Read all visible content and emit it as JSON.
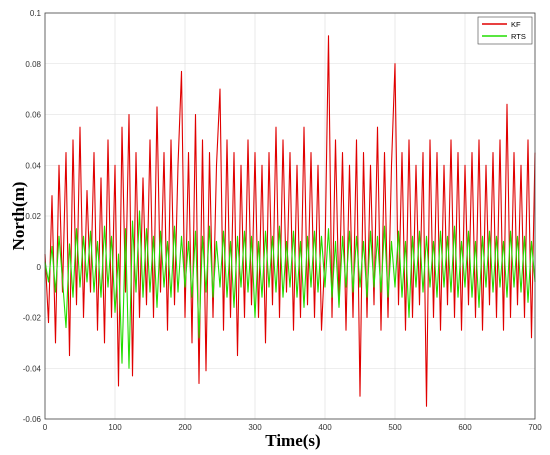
{
  "chart_data": {
    "type": "line",
    "xlabel": "Time(s)",
    "ylabel": "North(m)",
    "xlim": [
      0,
      700
    ],
    "ylim": [
      -0.06,
      0.1
    ],
    "x_ticks": [
      "0",
      "100",
      "200",
      "300",
      "400",
      "500",
      "600",
      "700"
    ],
    "y_ticks": [
      "-0.06",
      "-0.04",
      "-0.02",
      "0",
      "0.02",
      "0.04",
      "0.06",
      "0.08",
      "0.1"
    ],
    "grid": true,
    "legend_position": "top-right",
    "series": [
      {
        "name": "KF",
        "color": "#e00000",
        "x": [
          0,
          5,
          10,
          15,
          20,
          25,
          30,
          35,
          40,
          45,
          50,
          55,
          60,
          65,
          70,
          75,
          80,
          85,
          90,
          95,
          100,
          105,
          110,
          115,
          120,
          125,
          130,
          135,
          140,
          145,
          150,
          155,
          160,
          165,
          170,
          175,
          180,
          185,
          190,
          195,
          200,
          205,
          210,
          215,
          220,
          225,
          230,
          235,
          240,
          245,
          250,
          255,
          260,
          265,
          270,
          275,
          280,
          285,
          290,
          295,
          300,
          305,
          310,
          315,
          320,
          325,
          330,
          335,
          340,
          345,
          350,
          355,
          360,
          365,
          370,
          375,
          380,
          385,
          390,
          395,
          400,
          405,
          410,
          415,
          420,
          425,
          430,
          435,
          440,
          445,
          450,
          455,
          460,
          465,
          470,
          475,
          480,
          485,
          490,
          495,
          500,
          505,
          510,
          515,
          520,
          525,
          530,
          535,
          540,
          545,
          550,
          555,
          560,
          565,
          570,
          575,
          580,
          585,
          590,
          595,
          600,
          605,
          610,
          615,
          620,
          625,
          630,
          635,
          640,
          645,
          650,
          655,
          660,
          665,
          670,
          675,
          680,
          685,
          690,
          695,
          700
        ],
        "y": [
          0.005,
          -0.022,
          0.028,
          -0.03,
          0.04,
          -0.01,
          0.045,
          -0.035,
          0.05,
          -0.015,
          0.055,
          -0.02,
          0.03,
          -0.01,
          0.045,
          -0.025,
          0.035,
          -0.03,
          0.05,
          -0.02,
          0.04,
          -0.047,
          0.055,
          -0.01,
          0.06,
          -0.043,
          0.045,
          -0.02,
          0.035,
          -0.015,
          0.05,
          -0.02,
          0.063,
          -0.01,
          0.045,
          -0.025,
          0.05,
          -0.015,
          0.04,
          0.077,
          -0.02,
          0.045,
          -0.03,
          0.06,
          -0.046,
          0.05,
          -0.041,
          0.045,
          -0.02,
          0.04,
          0.07,
          -0.025,
          0.05,
          -0.02,
          0.045,
          -0.035,
          0.04,
          -0.02,
          0.05,
          -0.015,
          0.045,
          -0.02,
          0.04,
          -0.03,
          0.045,
          -0.015,
          0.055,
          -0.02,
          0.05,
          -0.01,
          0.045,
          -0.025,
          0.04,
          -0.02,
          0.055,
          -0.015,
          0.045,
          -0.02,
          0.04,
          -0.025,
          0.005,
          0.091,
          -0.02,
          0.05,
          -0.015,
          0.045,
          -0.025,
          0.04,
          -0.02,
          0.05,
          -0.051,
          0.045,
          -0.02,
          0.04,
          -0.015,
          0.055,
          -0.025,
          0.045,
          -0.02,
          0.04,
          0.08,
          -0.015,
          0.045,
          -0.025,
          0.05,
          -0.02,
          0.04,
          -0.015,
          0.045,
          -0.055,
          0.05,
          -0.02,
          0.045,
          -0.025,
          0.04,
          -0.015,
          0.05,
          -0.02,
          0.045,
          -0.025,
          0.04,
          -0.015,
          0.045,
          -0.02,
          0.05,
          -0.025,
          0.04,
          -0.015,
          0.045,
          -0.02,
          0.05,
          -0.025,
          0.064,
          -0.02,
          0.045,
          -0.015,
          0.04,
          -0.02,
          0.05,
          -0.028,
          0.045
        ]
      },
      {
        "name": "RTS",
        "color": "#22dd00",
        "x": [
          0,
          5,
          10,
          15,
          20,
          25,
          30,
          35,
          40,
          45,
          50,
          55,
          60,
          65,
          70,
          75,
          80,
          85,
          90,
          95,
          100,
          105,
          110,
          115,
          120,
          125,
          130,
          135,
          140,
          145,
          150,
          155,
          160,
          165,
          170,
          175,
          180,
          185,
          190,
          195,
          200,
          205,
          210,
          215,
          220,
          225,
          230,
          235,
          240,
          245,
          250,
          255,
          260,
          265,
          270,
          275,
          280,
          285,
          290,
          295,
          300,
          305,
          310,
          315,
          320,
          325,
          330,
          335,
          340,
          345,
          350,
          355,
          360,
          365,
          370,
          375,
          380,
          385,
          390,
          395,
          400,
          405,
          410,
          415,
          420,
          425,
          430,
          435,
          440,
          445,
          450,
          455,
          460,
          465,
          470,
          475,
          480,
          485,
          490,
          495,
          500,
          505,
          510,
          515,
          520,
          525,
          530,
          535,
          540,
          545,
          550,
          555,
          560,
          565,
          570,
          575,
          580,
          585,
          590,
          595,
          600,
          605,
          610,
          615,
          620,
          625,
          630,
          635,
          640,
          645,
          650,
          655,
          660,
          665,
          670,
          675,
          680,
          685,
          690,
          695,
          700
        ],
        "y": [
          0.002,
          -0.006,
          0.008,
          -0.01,
          0.012,
          -0.005,
          -0.024,
          0.009,
          -0.012,
          0.015,
          -0.008,
          0.012,
          -0.006,
          0.014,
          -0.01,
          0.01,
          -0.012,
          0.016,
          -0.008,
          0.012,
          -0.018,
          0.005,
          -0.038,
          0.015,
          -0.04,
          0.018,
          -0.01,
          0.022,
          -0.012,
          0.015,
          -0.01,
          0.012,
          -0.016,
          0.014,
          -0.008,
          0.01,
          -0.012,
          0.016,
          -0.01,
          0.012,
          -0.008,
          0.01,
          -0.012,
          0.014,
          -0.028,
          0.012,
          -0.01,
          0.016,
          -0.012,
          0.01,
          -0.008,
          0.014,
          -0.012,
          0.01,
          -0.016,
          0.012,
          -0.008,
          0.014,
          -0.01,
          0.012,
          -0.02,
          0.01,
          -0.012,
          0.014,
          -0.008,
          0.012,
          -0.01,
          0.016,
          -0.012,
          0.01,
          -0.008,
          0.014,
          -0.012,
          0.01,
          -0.016,
          0.012,
          -0.008,
          0.014,
          -0.01,
          0.012,
          -0.008,
          0.015,
          -0.012,
          0.01,
          -0.016,
          0.012,
          -0.008,
          0.014,
          -0.01,
          0.012,
          -0.008,
          0.01,
          -0.012,
          0.014,
          -0.008,
          0.012,
          -0.01,
          0.016,
          -0.012,
          0.01,
          -0.008,
          0.014,
          -0.012,
          0.01,
          -0.02,
          0.012,
          -0.008,
          0.014,
          -0.01,
          0.012,
          -0.008,
          0.01,
          -0.012,
          0.014,
          -0.008,
          0.012,
          -0.01,
          0.016,
          -0.012,
          0.01,
          -0.008,
          0.014,
          -0.012,
          0.01,
          -0.016,
          0.012,
          -0.008,
          0.014,
          -0.01,
          0.012,
          -0.008,
          0.01,
          -0.012,
          0.014,
          -0.008,
          0.012,
          -0.01,
          0.012,
          -0.014,
          0.01,
          -0.006
        ]
      }
    ]
  }
}
